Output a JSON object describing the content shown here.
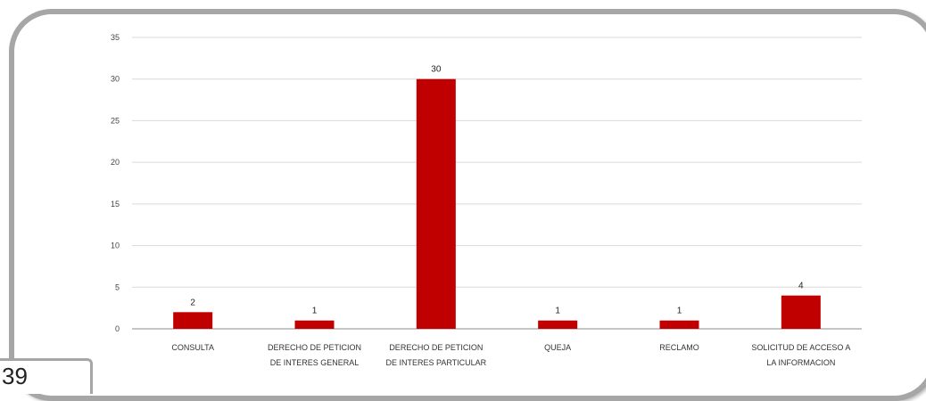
{
  "page": {
    "number": "39"
  },
  "chart_data": {
    "type": "bar",
    "categories": [
      [
        "CONSULTA"
      ],
      [
        "DERECHO DE PETICION",
        "DE INTERES GENERAL"
      ],
      [
        "DERECHO DE PETICION",
        "DE INTERES PARTICULAR"
      ],
      [
        "QUEJA"
      ],
      [
        "RECLAMO"
      ],
      [
        "SOLICITUD DE ACCESO A",
        "LA INFORMACION"
      ]
    ],
    "values": [
      2,
      1,
      30,
      1,
      1,
      4
    ],
    "ylim": [
      0,
      35
    ],
    "yticks": [
      0,
      5,
      10,
      15,
      20,
      25,
      30,
      35
    ],
    "grid": true,
    "bar_color": "#c00000",
    "title": "",
    "xlabel": "",
    "ylabel": ""
  }
}
